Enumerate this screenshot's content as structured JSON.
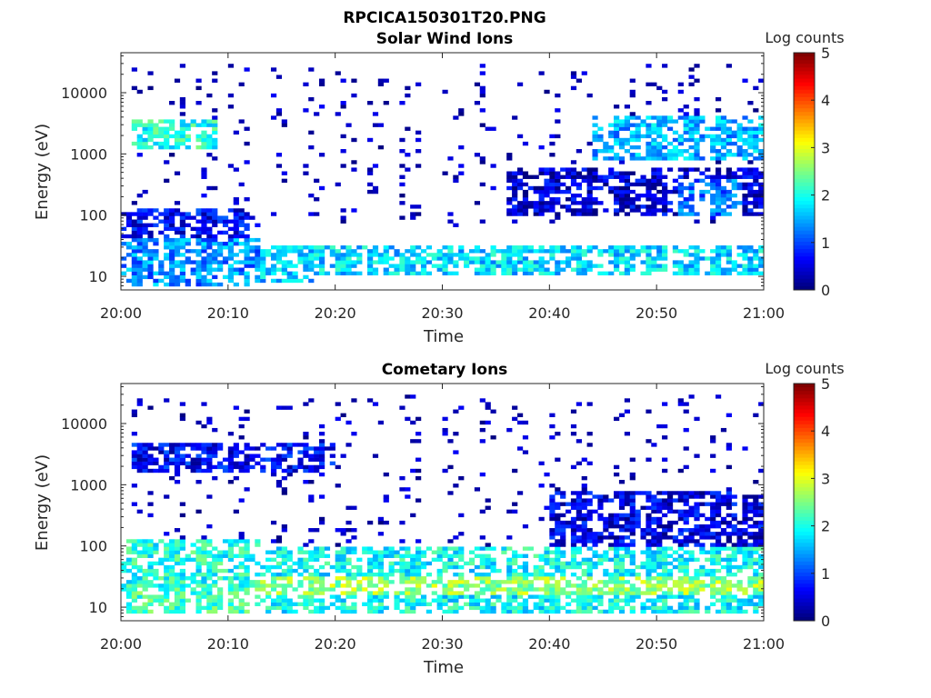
{
  "figure": {
    "title": "RPCICA150301T20.PNG"
  },
  "chart_data": [
    {
      "type": "heatmap",
      "title": "Solar Wind Ions",
      "xlabel": "Time",
      "ylabel": "Energy (eV)",
      "x_range": [
        "20:00",
        "21:00"
      ],
      "x_ticks": [
        "20:00",
        "20:10",
        "20:20",
        "20:30",
        "20:40",
        "20:50",
        "21:00"
      ],
      "y_scale": "log",
      "y_range": [
        6,
        45000
      ],
      "y_ticks": [
        {
          "value": 10,
          "label": "10"
        },
        {
          "value": 100,
          "label": "100"
        },
        {
          "value": 1000,
          "label": "1000"
        },
        {
          "value": 10000,
          "label": "10000"
        }
      ],
      "colorbar": {
        "label": "Log counts",
        "range": [
          0,
          5
        ],
        "ticks": [
          "0",
          "1",
          "2",
          "3",
          "4",
          "5"
        ],
        "colormap": "jet"
      },
      "sweeps_min": [
        2,
        5,
        8,
        11,
        15,
        18,
        21,
        24,
        27,
        31,
        34,
        37,
        40,
        43,
        47,
        50,
        53,
        56,
        59
      ],
      "sweeps_start_end_minutes": [
        0,
        60
      ],
      "regions": [
        {
          "t": [
            0,
            13
          ],
          "e": [
            7,
            40
          ],
          "level": 1.3
        },
        {
          "t": [
            0,
            13
          ],
          "e": [
            40,
            130
          ],
          "level": 0.6
        },
        {
          "t": [
            1,
            9
          ],
          "e": [
            1200,
            3500
          ],
          "level": 2.0
        },
        {
          "t": [
            13,
            18
          ],
          "e": [
            8,
            30
          ],
          "level": 1.6
        },
        {
          "t": [
            18,
            60
          ],
          "e": [
            10,
            30
          ],
          "level": 1.7
        },
        {
          "t": [
            36,
            60
          ],
          "e": [
            100,
            600
          ],
          "level": 0.4
        },
        {
          "t": [
            44,
            60
          ],
          "e": [
            800,
            4000
          ],
          "level": 1.5
        },
        {
          "t": [
            52,
            58
          ],
          "e": [
            100,
            400
          ],
          "level": 1.2
        }
      ]
    },
    {
      "type": "heatmap",
      "title": "Cometary Ions",
      "xlabel": "Time",
      "ylabel": "Energy (eV)",
      "x_range": [
        "20:00",
        "21:00"
      ],
      "x_ticks": [
        "20:00",
        "20:10",
        "20:20",
        "20:30",
        "20:40",
        "20:50",
        "21:00"
      ],
      "y_scale": "log",
      "y_range": [
        6,
        45000
      ],
      "y_ticks": [
        {
          "value": 10,
          "label": "10"
        },
        {
          "value": 100,
          "label": "100"
        },
        {
          "value": 1000,
          "label": "1000"
        },
        {
          "value": 10000,
          "label": "10000"
        }
      ],
      "colorbar": {
        "label": "Log counts",
        "range": [
          0,
          5
        ],
        "ticks": [
          "0",
          "1",
          "2",
          "3",
          "4",
          "5"
        ],
        "colormap": "jet"
      },
      "sweeps_min": [
        2,
        5,
        8,
        11,
        15,
        18,
        21,
        24,
        27,
        31,
        34,
        37,
        40,
        43,
        47,
        50,
        53,
        56,
        59
      ],
      "sweeps_start_end_minutes": [
        0,
        60
      ],
      "regions": [
        {
          "t": [
            0,
            13
          ],
          "e": [
            10,
            130
          ],
          "level": 2.0
        },
        {
          "t": [
            0,
            13
          ],
          "e": [
            8,
            20
          ],
          "level": 2.2
        },
        {
          "t": [
            13,
            60
          ],
          "e": [
            8,
            100
          ],
          "level": 1.9
        },
        {
          "t": [
            13,
            60
          ],
          "e": [
            15,
            30
          ],
          "level": 2.6
        },
        {
          "t": [
            40,
            60
          ],
          "e": [
            100,
            800
          ],
          "level": 0.5
        },
        {
          "t": [
            1,
            20
          ],
          "e": [
            1500,
            5000
          ],
          "level": 0.6
        }
      ]
    }
  ]
}
